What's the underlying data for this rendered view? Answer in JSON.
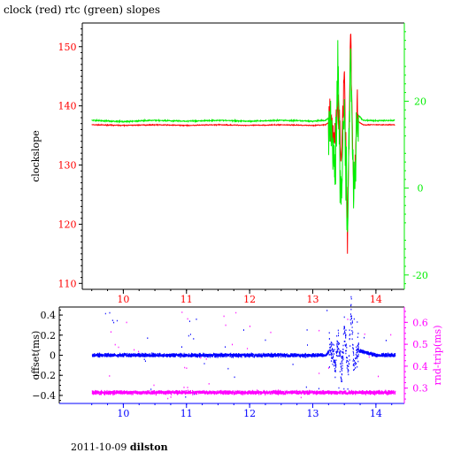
{
  "title": "clock (red) rtc (green) slopes",
  "footer": {
    "date": "2011-10-09",
    "site": "dilston"
  },
  "colors": {
    "clock": "#ff0000",
    "rtc": "#00ee00",
    "offset": "#0000ff",
    "rndtrip": "#ff00ff",
    "axis_top_left": "#ff0000",
    "axis_top_right": "#00ee00",
    "axis_bottom_left": "#000000",
    "axis_bottom_right": "#ff00ff",
    "axis_bottom_x": "#0000ff"
  },
  "chart_data": [
    {
      "type": "line",
      "ylabel": "clockslope",
      "xlim": [
        9.35,
        14.45
      ],
      "ylim": [
        109,
        154
      ],
      "y2lim": [
        -23.3,
        38
      ],
      "x_ticks": [
        10,
        11,
        12,
        13,
        14
      ],
      "y_ticks": [
        110,
        120,
        130,
        140,
        150
      ],
      "y2_ticks": [
        -20,
        0,
        20
      ],
      "grid": false,
      "series": [
        {
          "axis": "left",
          "color": "#ff0000",
          "baseline": 136.8,
          "x": [
            9.5,
            10.0,
            10.5,
            11.0,
            11.5,
            12.0,
            12.5,
            13.0,
            13.2,
            13.3,
            13.35,
            13.4,
            13.45,
            13.5,
            13.55,
            13.6,
            13.65,
            13.7,
            13.8,
            14.0,
            14.3
          ],
          "y": [
            136.8,
            136.7,
            136.8,
            136.7,
            136.8,
            136.7,
            136.8,
            136.7,
            136.8,
            137.5,
            133.5,
            140.5,
            130.5,
            146.0,
            118.5,
            152.0,
            124.5,
            137.5,
            136.8,
            136.8,
            136.8
          ]
        },
        {
          "axis": "right",
          "color": "#00ee00",
          "baseline": 15.5,
          "x": [
            9.5,
            10.0,
            10.5,
            11.0,
            11.5,
            12.0,
            12.5,
            13.0,
            13.2,
            13.3,
            13.35,
            13.4,
            13.45,
            13.5,
            13.55,
            13.6,
            13.65,
            13.7,
            13.8,
            14.0,
            14.3
          ],
          "y": [
            15.6,
            15.3,
            15.6,
            15.4,
            15.6,
            15.4,
            15.6,
            15.4,
            15.6,
            16.5,
            3.0,
            26.0,
            -3.0,
            20.0,
            -10.0,
            32.0,
            -5.0,
            17.0,
            15.6,
            15.5,
            15.6
          ]
        }
      ]
    },
    {
      "type": "scatter",
      "ylabel": "offset(ms)",
      "y2label": "rnd-trip(ms)",
      "xlim": [
        9.35,
        14.45
      ],
      "ylim": [
        -0.48,
        0.48
      ],
      "y2lim": [
        0.23,
        0.67
      ],
      "x_ticks": [
        10,
        11,
        12,
        13,
        14
      ],
      "y_ticks": [
        -0.4,
        -0.2,
        0,
        0.2,
        0.4
      ],
      "y2_ticks": [
        0.3,
        0.4,
        0.5,
        0.6
      ],
      "grid": false,
      "series": [
        {
          "axis": "left",
          "color": "#0000ff",
          "baseline": 0.0,
          "x": [
            9.5,
            10.5,
            11.5,
            12.5,
            13.2,
            13.3,
            13.35,
            13.4,
            13.45,
            13.5,
            13.55,
            13.6,
            13.65,
            13.7,
            14.0,
            14.3
          ],
          "y": [
            0.0,
            0.0,
            0.0,
            0.0,
            0.0,
            0.08,
            -0.1,
            0.15,
            -0.2,
            0.3,
            -0.22,
            0.46,
            -0.15,
            0.05,
            0.0,
            0.0
          ]
        },
        {
          "axis": "right",
          "color": "#ff00ff",
          "baseline": 0.28,
          "x": [
            9.5,
            10.5,
            11.5,
            12.5,
            13.5,
            14.3
          ],
          "y": [
            0.28,
            0.28,
            0.28,
            0.28,
            0.28,
            0.28
          ]
        }
      ]
    }
  ]
}
